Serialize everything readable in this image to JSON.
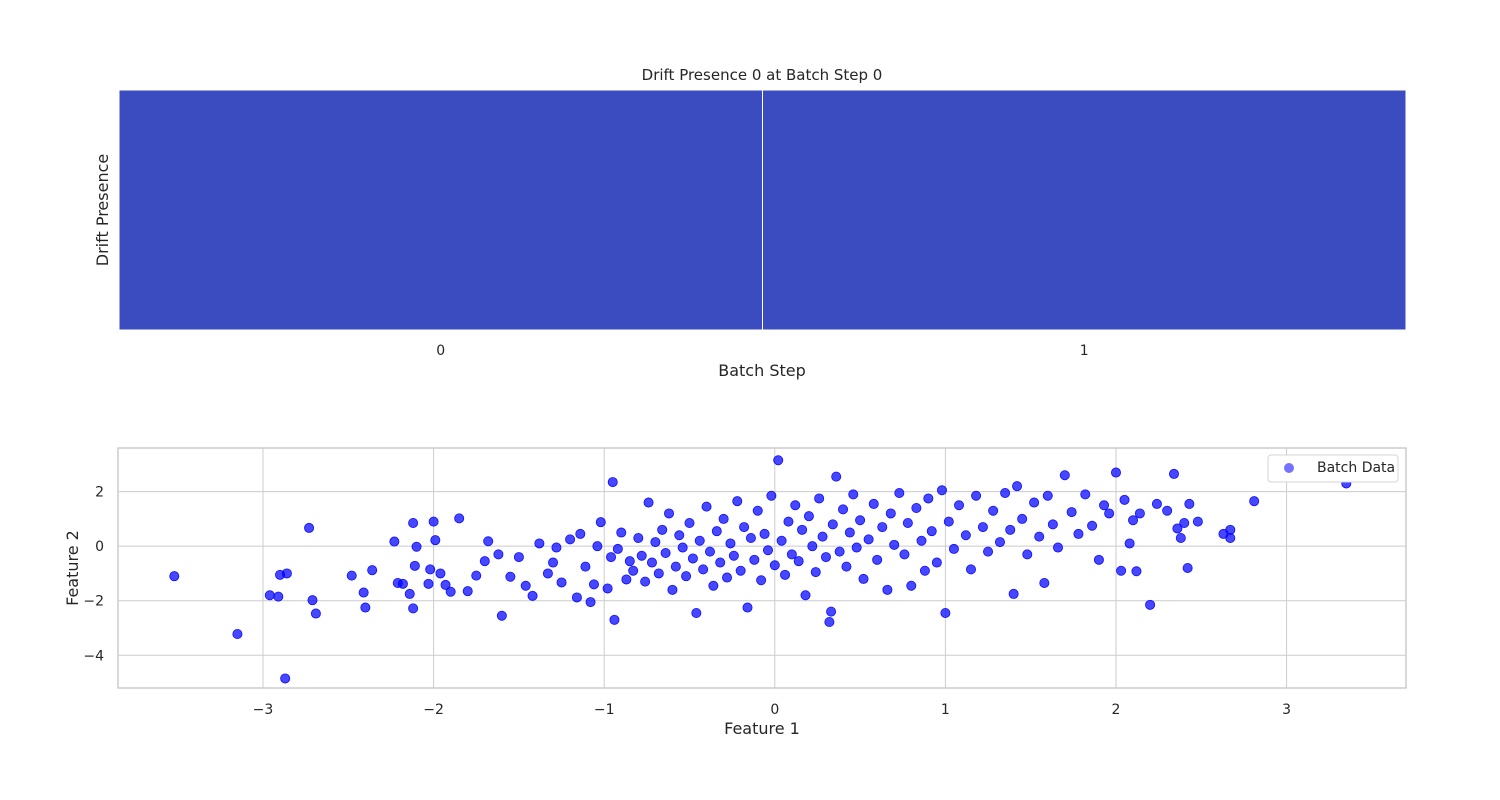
{
  "chart_data": [
    {
      "type": "heatmap",
      "title": "Drift Presence 0 at Batch Step 0",
      "xlabel": "Batch Step",
      "ylabel": "Drift Presence",
      "categories": [
        "0",
        "1"
      ],
      "values": [
        0,
        0
      ],
      "cell_color": "#3b4cc0",
      "grid": false
    },
    {
      "type": "scatter",
      "xlabel": "Feature 1",
      "ylabel": "Feature 2",
      "xlim": [
        -3.85,
        3.7
      ],
      "ylim": [
        -5.2,
        3.6
      ],
      "xticks": [
        -3,
        -2,
        -1,
        0,
        1,
        2,
        3
      ],
      "xtick_labels": [
        "−3",
        "−2",
        "−1",
        "0",
        "1",
        "2",
        "3"
      ],
      "yticks": [
        -4,
        -2,
        0,
        2
      ],
      "ytick_labels": [
        "−4",
        "−2",
        "0",
        "2"
      ],
      "grid": true,
      "legend_position": "top-right",
      "series": [
        {
          "name": "Batch Data",
          "color": "#0000ff",
          "points": [
            [
              -3.52,
              -1.1
            ],
            [
              -3.15,
              -3.22
            ],
            [
              -2.87,
              -4.85
            ],
            [
              -2.96,
              -1.8
            ],
            [
              -2.91,
              -1.85
            ],
            [
              -2.9,
              -1.05
            ],
            [
              -2.86,
              -1.0
            ],
            [
              -2.73,
              0.67
            ],
            [
              -2.71,
              -1.98
            ],
            [
              -2.69,
              -2.47
            ],
            [
              -2.48,
              -1.08
            ],
            [
              -2.41,
              -1.7
            ],
            [
              -2.4,
              -2.25
            ],
            [
              -2.36,
              -0.88
            ],
            [
              -2.23,
              0.17
            ],
            [
              -2.21,
              -1.35
            ],
            [
              -2.18,
              -1.38
            ],
            [
              -2.14,
              -1.75
            ],
            [
              -2.12,
              -2.28
            ],
            [
              -2.12,
              0.85
            ],
            [
              -2.11,
              -0.72
            ],
            [
              -2.1,
              -0.02
            ],
            [
              -2.03,
              -1.38
            ],
            [
              -2.02,
              -0.85
            ],
            [
              -2.0,
              0.9
            ],
            [
              -1.99,
              0.22
            ],
            [
              -1.96,
              -1.0
            ],
            [
              -1.93,
              -1.42
            ],
            [
              -1.9,
              -1.67
            ],
            [
              -1.85,
              1.02
            ],
            [
              -1.8,
              -1.65
            ],
            [
              -1.75,
              -1.08
            ],
            [
              -1.7,
              -0.55
            ],
            [
              -1.68,
              0.18
            ],
            [
              -1.62,
              -0.3
            ],
            [
              -1.6,
              -2.55
            ],
            [
              -1.55,
              -1.12
            ],
            [
              -1.5,
              -0.4
            ],
            [
              -1.46,
              -1.45
            ],
            [
              -1.42,
              -1.82
            ],
            [
              -1.38,
              0.1
            ],
            [
              -1.33,
              -1.0
            ],
            [
              -1.3,
              -0.6
            ],
            [
              -1.28,
              -0.05
            ],
            [
              -1.25,
              -1.33
            ],
            [
              -1.2,
              0.25
            ],
            [
              -1.16,
              -1.88
            ],
            [
              -1.14,
              0.45
            ],
            [
              -1.11,
              -0.75
            ],
            [
              -1.08,
              -2.05
            ],
            [
              -1.06,
              -1.4
            ],
            [
              -1.04,
              0.0
            ],
            [
              -1.02,
              0.88
            ],
            [
              -0.98,
              -1.55
            ],
            [
              -0.96,
              -0.4
            ],
            [
              -0.95,
              2.35
            ],
            [
              -0.94,
              -2.7
            ],
            [
              -0.92,
              -0.1
            ],
            [
              -0.9,
              0.5
            ],
            [
              -0.87,
              -1.22
            ],
            [
              -0.85,
              -0.55
            ],
            [
              -0.83,
              -0.9
            ],
            [
              -0.8,
              0.3
            ],
            [
              -0.78,
              -0.35
            ],
            [
              -0.76,
              -1.3
            ],
            [
              -0.74,
              1.6
            ],
            [
              -0.72,
              -0.6
            ],
            [
              -0.7,
              0.15
            ],
            [
              -0.68,
              -1.0
            ],
            [
              -0.66,
              0.6
            ],
            [
              -0.64,
              -0.25
            ],
            [
              -0.62,
              1.2
            ],
            [
              -0.6,
              -1.6
            ],
            [
              -0.58,
              -0.75
            ],
            [
              -0.56,
              0.4
            ],
            [
              -0.54,
              -0.05
            ],
            [
              -0.52,
              -1.1
            ],
            [
              -0.5,
              0.85
            ],
            [
              -0.48,
              -0.45
            ],
            [
              -0.46,
              -2.45
            ],
            [
              -0.44,
              0.2
            ],
            [
              -0.42,
              -0.85
            ],
            [
              -0.4,
              1.45
            ],
            [
              -0.38,
              -0.2
            ],
            [
              -0.36,
              -1.45
            ],
            [
              -0.34,
              0.55
            ],
            [
              -0.32,
              -0.6
            ],
            [
              -0.3,
              1.0
            ],
            [
              -0.28,
              -1.15
            ],
            [
              -0.26,
              0.1
            ],
            [
              -0.24,
              -0.35
            ],
            [
              -0.22,
              1.65
            ],
            [
              -0.2,
              -0.9
            ],
            [
              -0.18,
              0.7
            ],
            [
              -0.16,
              -2.25
            ],
            [
              -0.14,
              0.3
            ],
            [
              -0.12,
              -0.5
            ],
            [
              -0.1,
              1.3
            ],
            [
              -0.08,
              -1.25
            ],
            [
              -0.06,
              0.45
            ],
            [
              -0.04,
              -0.15
            ],
            [
              -0.02,
              1.85
            ],
            [
              0.0,
              -0.7
            ],
            [
              0.02,
              3.15
            ],
            [
              0.04,
              0.2
            ],
            [
              0.06,
              -1.05
            ],
            [
              0.08,
              0.9
            ],
            [
              0.1,
              -0.3
            ],
            [
              0.12,
              1.5
            ],
            [
              0.14,
              -0.55
            ],
            [
              0.16,
              0.6
            ],
            [
              0.18,
              -1.8
            ],
            [
              0.2,
              1.1
            ],
            [
              0.22,
              0.0
            ],
            [
              0.24,
              -0.95
            ],
            [
              0.26,
              1.75
            ],
            [
              0.28,
              0.35
            ],
            [
              0.3,
              -0.4
            ],
            [
              0.32,
              -2.78
            ],
            [
              0.33,
              -2.4
            ],
            [
              0.34,
              0.8
            ],
            [
              0.36,
              2.55
            ],
            [
              0.38,
              -0.2
            ],
            [
              0.4,
              1.35
            ],
            [
              0.42,
              -0.75
            ],
            [
              0.44,
              0.5
            ],
            [
              0.46,
              1.9
            ],
            [
              0.48,
              -0.05
            ],
            [
              0.5,
              0.95
            ],
            [
              0.52,
              -1.2
            ],
            [
              0.55,
              0.25
            ],
            [
              0.58,
              1.55
            ],
            [
              0.6,
              -0.5
            ],
            [
              0.63,
              0.7
            ],
            [
              0.66,
              -1.6
            ],
            [
              0.68,
              1.2
            ],
            [
              0.7,
              0.05
            ],
            [
              0.73,
              1.95
            ],
            [
              0.76,
              -0.3
            ],
            [
              0.78,
              0.85
            ],
            [
              0.8,
              -1.45
            ],
            [
              0.83,
              1.4
            ],
            [
              0.86,
              0.2
            ],
            [
              0.88,
              -0.9
            ],
            [
              0.9,
              1.75
            ],
            [
              0.92,
              0.55
            ],
            [
              0.95,
              -0.6
            ],
            [
              0.98,
              2.05
            ],
            [
              1.0,
              -2.45
            ],
            [
              1.02,
              0.9
            ],
            [
              1.05,
              -0.1
            ],
            [
              1.08,
              1.5
            ],
            [
              1.12,
              0.4
            ],
            [
              1.15,
              -0.85
            ],
            [
              1.18,
              1.85
            ],
            [
              1.22,
              0.7
            ],
            [
              1.25,
              -0.2
            ],
            [
              1.28,
              1.3
            ],
            [
              1.32,
              0.15
            ],
            [
              1.35,
              1.95
            ],
            [
              1.38,
              0.6
            ],
            [
              1.4,
              -1.75
            ],
            [
              1.42,
              2.2
            ],
            [
              1.45,
              1.0
            ],
            [
              1.48,
              -0.3
            ],
            [
              1.52,
              1.6
            ],
            [
              1.55,
              0.35
            ],
            [
              1.58,
              -1.35
            ],
            [
              1.6,
              1.85
            ],
            [
              1.63,
              0.8
            ],
            [
              1.66,
              -0.05
            ],
            [
              1.7,
              2.6
            ],
            [
              1.74,
              1.25
            ],
            [
              1.78,
              0.45
            ],
            [
              1.82,
              1.9
            ],
            [
              1.86,
              0.75
            ],
            [
              1.9,
              -0.5
            ],
            [
              1.93,
              1.5
            ],
            [
              1.96,
              1.2
            ],
            [
              2.0,
              2.7
            ],
            [
              2.03,
              -0.9
            ],
            [
              2.05,
              1.7
            ],
            [
              2.08,
              0.1
            ],
            [
              2.1,
              0.95
            ],
            [
              2.12,
              -0.92
            ],
            [
              2.14,
              1.2
            ],
            [
              2.2,
              -2.15
            ],
            [
              2.24,
              1.55
            ],
            [
              2.3,
              1.3
            ],
            [
              2.34,
              2.65
            ],
            [
              2.36,
              0.65
            ],
            [
              2.38,
              0.3
            ],
            [
              2.4,
              0.85
            ],
            [
              2.42,
              -0.8
            ],
            [
              2.43,
              1.55
            ],
            [
              2.48,
              0.9
            ],
            [
              2.63,
              0.45
            ],
            [
              2.67,
              0.6
            ],
            [
              2.67,
              0.3
            ],
            [
              2.81,
              1.65
            ],
            [
              3.35,
              2.3
            ]
          ]
        }
      ]
    }
  ]
}
